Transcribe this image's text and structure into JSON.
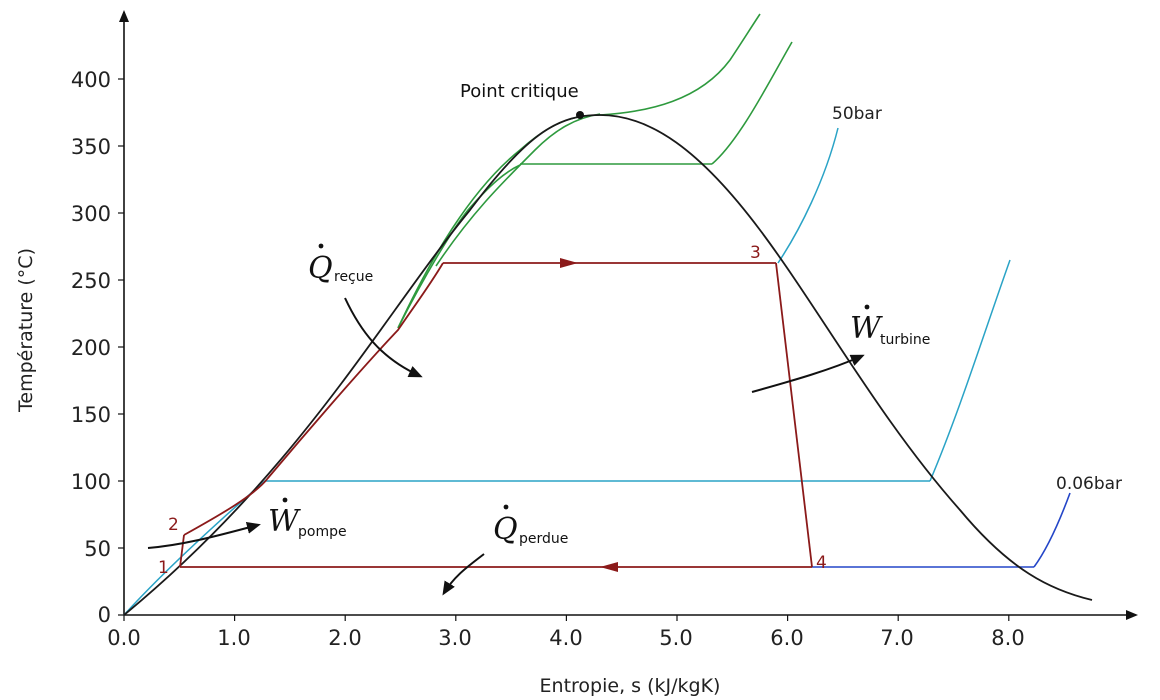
{
  "axes": {
    "ylabel": "Température (°C)",
    "xlabel": "Entropie, s  (kJ/kgK)",
    "x_ticks": [
      "0.0",
      "1.0",
      "2.0",
      "3.0",
      "4.0",
      "5.0",
      "6.0",
      "7.0",
      "8.0"
    ],
    "y_ticks": [
      "0",
      "50",
      "100",
      "150",
      "200",
      "250",
      "300",
      "350",
      "400"
    ]
  },
  "annotations": {
    "critical_point": "Point critique",
    "pressure_high": "50bar",
    "pressure_low": "0.06bar"
  },
  "states": [
    "1",
    "2",
    "3",
    "4"
  ],
  "energy_terms": {
    "heat_in": {
      "symbol": "Q",
      "subscript": "reçue"
    },
    "heat_out": {
      "symbol": "Q",
      "subscript": "perdue"
    },
    "work_turbine": {
      "symbol": "W",
      "subscript": "turbine"
    },
    "work_pump": {
      "symbol": "W",
      "subscript": "pompe"
    }
  },
  "colors": {
    "saturation_dome": "#1a1a1a",
    "cycle": "#8b1a1a",
    "isobar_high": "#2e9a3e",
    "isobar_mid": "#2aa3c6",
    "isobar_low": "#2446c8",
    "arrows": "#111111"
  }
}
